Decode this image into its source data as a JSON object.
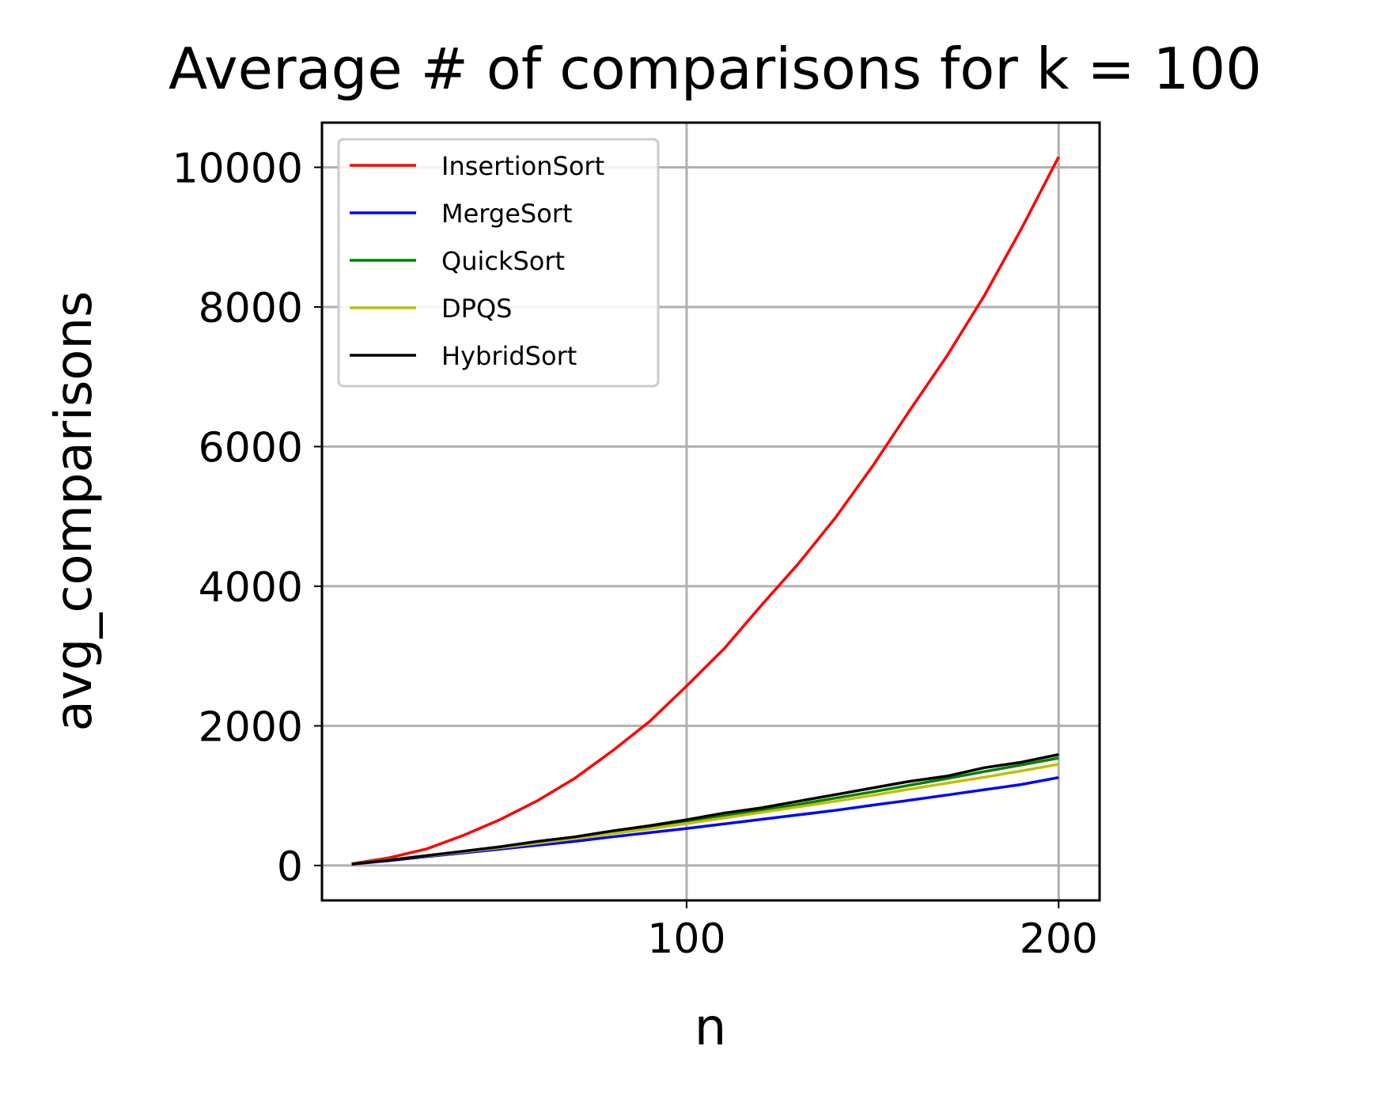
{
  "chart_data": {
    "type": "line",
    "title": "Average # of comparisons for k = 100",
    "xlabel": "n",
    "ylabel": "avg_comparisons",
    "xlim": [
      2,
      211
    ],
    "ylim": [
      -500,
      10640
    ],
    "xticks": [
      100,
      200
    ],
    "xtick_labels": [
      "100",
      "200"
    ],
    "yticks": [
      0,
      2000,
      4000,
      6000,
      8000,
      10000
    ],
    "ytick_labels": [
      "0",
      "2000",
      "4000",
      "6000",
      "8000",
      "10000"
    ],
    "grid": true,
    "legend_position": "upper-left",
    "x": [
      10,
      20,
      30,
      40,
      50,
      60,
      70,
      80,
      90,
      100,
      110,
      120,
      130,
      140,
      150,
      160,
      170,
      180,
      190,
      200
    ],
    "series": [
      {
        "name": "InsertionSort",
        "color": "#ff0000",
        "values": [
          25,
          110,
          235,
          430,
          660,
          930,
          1250,
          1640,
          2060,
          2570,
          3100,
          3720,
          4320,
          4980,
          5720,
          6520,
          7300,
          8160,
          9120,
          10150
        ]
      },
      {
        "name": "MergeSort",
        "color": "#0000ff",
        "values": [
          20,
          70,
          125,
          180,
          235,
          290,
          345,
          410,
          470,
          530,
          595,
          660,
          725,
          790,
          865,
          935,
          1010,
          1085,
          1160,
          1260
        ]
      },
      {
        "name": "QuickSort",
        "color": "#008000",
        "values": [
          20,
          80,
          140,
          200,
          260,
          330,
          400,
          470,
          545,
          625,
          710,
          790,
          875,
          965,
          1055,
          1150,
          1245,
          1345,
          1440,
          1540
        ]
      },
      {
        "name": "DPQS",
        "color": "#bfbf00",
        "values": [
          20,
          80,
          135,
          195,
          255,
          320,
          385,
          455,
          525,
          600,
          680,
          760,
          840,
          920,
          1005,
          1095,
          1180,
          1265,
          1355,
          1450
        ]
      },
      {
        "name": "HybridSort",
        "color": "#000000",
        "values": [
          20,
          75,
          140,
          205,
          270,
          345,
          410,
          495,
          570,
          655,
          750,
          825,
          920,
          1015,
          1110,
          1205,
          1280,
          1400,
          1480,
          1590
        ]
      }
    ]
  }
}
